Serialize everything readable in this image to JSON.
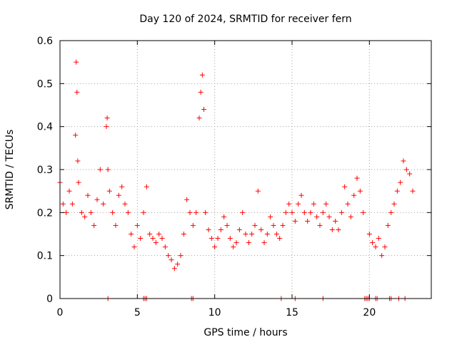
{
  "chart_data": {
    "type": "scatter",
    "title": "Day 120 of 2024, SRMTID for receiver fern",
    "xlabel": "GPS time / hours",
    "ylabel": "SRMTID / TECUs",
    "xlim": [
      0,
      24
    ],
    "ylim": [
      0,
      0.6
    ],
    "xticks": [
      0,
      5,
      10,
      15,
      20
    ],
    "xtick_labels": [
      "0",
      "5",
      "10",
      "15",
      "20"
    ],
    "yticks": [
      0,
      0.1,
      0.2,
      0.3,
      0.4,
      0.5,
      0.6
    ],
    "ytick_labels": [
      "0",
      "0.1",
      "0.2",
      "0.3",
      "0.4",
      "0.5",
      "0.6"
    ],
    "grid": true,
    "marker": "+",
    "color": "#ff0000",
    "series": [
      {
        "name": "SRMTID",
        "x": [
          0.0,
          0.2,
          0.4,
          0.6,
          0.8,
          1.0,
          1.05,
          1.1,
          1.15,
          1.2,
          1.4,
          1.6,
          1.8,
          2.0,
          2.2,
          2.4,
          2.6,
          2.8,
          3.0,
          3.05,
          3.1,
          3.2,
          3.4,
          3.6,
          3.8,
          4.0,
          4.2,
          4.4,
          4.6,
          4.8,
          5.0,
          5.2,
          5.4,
          5.6,
          5.8,
          6.0,
          6.2,
          6.4,
          6.6,
          6.8,
          7.0,
          7.2,
          7.4,
          7.6,
          7.8,
          8.0,
          8.2,
          8.4,
          8.6,
          8.8,
          9.0,
          9.1,
          9.2,
          9.3,
          9.4,
          9.6,
          9.8,
          10.0,
          10.2,
          10.4,
          10.6,
          10.8,
          11.0,
          11.2,
          11.4,
          11.6,
          11.8,
          12.0,
          12.2,
          12.4,
          12.6,
          12.8,
          13.0,
          13.2,
          13.4,
          13.6,
          13.8,
          14.0,
          14.2,
          14.4,
          14.6,
          14.8,
          15.0,
          15.2,
          15.4,
          15.6,
          15.8,
          16.0,
          16.2,
          16.4,
          16.6,
          16.8,
          17.0,
          17.2,
          17.4,
          17.6,
          17.8,
          18.0,
          18.2,
          18.4,
          18.6,
          18.8,
          19.0,
          19.2,
          19.4,
          19.6,
          20.0,
          20.2,
          20.4,
          20.6,
          20.8,
          21.0,
          21.2,
          21.4,
          21.6,
          21.8,
          22.0,
          22.2,
          22.4,
          22.6,
          22.8
        ],
        "y": [
          0.27,
          0.22,
          0.2,
          0.25,
          0.22,
          0.38,
          0.55,
          0.48,
          0.32,
          0.27,
          0.2,
          0.19,
          0.24,
          0.2,
          0.17,
          0.23,
          0.3,
          0.22,
          0.4,
          0.42,
          0.3,
          0.25,
          0.2,
          0.17,
          0.24,
          0.26,
          0.22,
          0.2,
          0.15,
          0.12,
          0.17,
          0.14,
          0.2,
          0.26,
          0.15,
          0.14,
          0.13,
          0.15,
          0.14,
          0.12,
          0.1,
          0.09,
          0.07,
          0.08,
          0.1,
          0.15,
          0.23,
          0.2,
          0.17,
          0.2,
          0.42,
          0.48,
          0.52,
          0.44,
          0.2,
          0.16,
          0.14,
          0.12,
          0.14,
          0.16,
          0.19,
          0.17,
          0.14,
          0.12,
          0.13,
          0.16,
          0.2,
          0.15,
          0.13,
          0.15,
          0.17,
          0.25,
          0.16,
          0.13,
          0.15,
          0.19,
          0.17,
          0.15,
          0.14,
          0.17,
          0.2,
          0.22,
          0.2,
          0.18,
          0.22,
          0.24,
          0.2,
          0.18,
          0.2,
          0.22,
          0.19,
          0.17,
          0.2,
          0.22,
          0.19,
          0.16,
          0.18,
          0.16,
          0.2,
          0.26,
          0.22,
          0.19,
          0.24,
          0.28,
          0.25,
          0.2,
          0.15,
          0.13,
          0.12,
          0.14,
          0.1,
          0.12,
          0.17,
          0.2,
          0.22,
          0.25,
          0.27,
          0.32,
          0.3,
          0.29,
          0.25
        ]
      },
      {
        "name": "zero values",
        "x": [
          3.1,
          5.4,
          5.5,
          5.6,
          8.5,
          8.6,
          14.3,
          15.2,
          17.0,
          19.7,
          19.8,
          19.9,
          20.0,
          20.4,
          20.5,
          21.3,
          21.4,
          21.9,
          22.3
        ],
        "y": [
          0,
          0,
          0,
          0,
          0,
          0,
          0,
          0,
          0,
          0,
          0,
          0,
          0,
          0,
          0,
          0,
          0,
          0,
          0
        ]
      }
    ]
  }
}
